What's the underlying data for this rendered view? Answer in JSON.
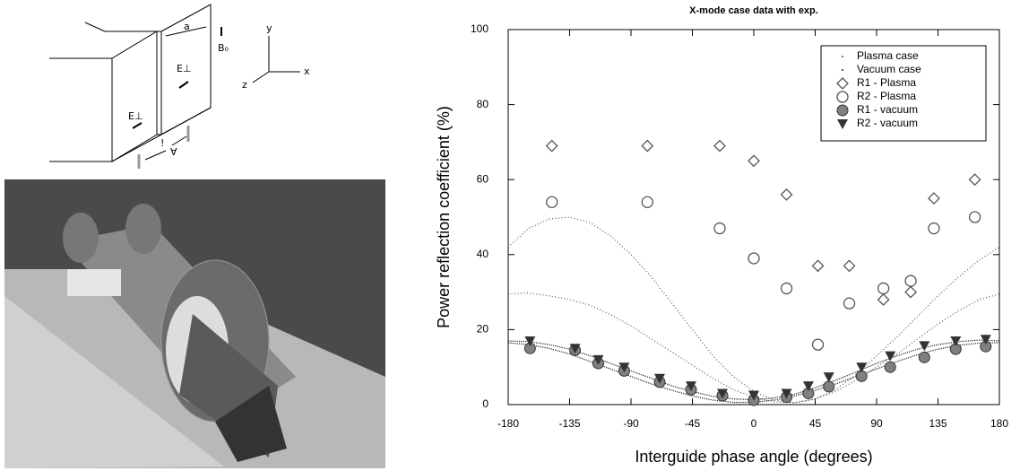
{
  "diagram": {
    "labels": [
      "a",
      "B₀",
      "y",
      "x",
      "z",
      "E⊥",
      "E⊥",
      "!",
      "∀"
    ]
  },
  "chart_data": {
    "type": "scatter",
    "title": "X-mode case data with exp.",
    "xlabel": "Interguide phase angle (degrees)",
    "ylabel": "Power reflection coefficient (%)",
    "xlim": [
      -180,
      180
    ],
    "xticks": [
      -180,
      -135,
      -90,
      -45,
      0,
      45,
      90,
      135,
      180
    ],
    "ylim": [
      0,
      100
    ],
    "yticks": [
      0,
      20,
      40,
      60,
      80,
      100
    ],
    "legend": "top-right",
    "series": [
      {
        "name": "Plasma case",
        "kind": "line",
        "style": "dotted",
        "color": "#555555",
        "x": [
          -180,
          -165,
          -150,
          -135,
          -120,
          -105,
          -90,
          -75,
          -60,
          -45,
          -30,
          -15,
          0,
          15,
          30,
          45,
          60,
          75,
          90,
          105,
          120,
          135,
          150,
          165,
          180
        ],
        "values": [
          42,
          47,
          49.5,
          50,
          48.5,
          45,
          40,
          34,
          27,
          20,
          13,
          7.5,
          3.5,
          1.2,
          0.5,
          1.5,
          4,
          8,
          13,
          18,
          23.5,
          29,
          34,
          38.5,
          42
        ]
      },
      {
        "kind": "line",
        "style": "dotted",
        "color": "#555555",
        "x": [
          -180,
          -165,
          -150,
          -135,
          -120,
          -105,
          -90,
          -75,
          -60,
          -45,
          -30,
          -15,
          0,
          15,
          30,
          45,
          60,
          75,
          90,
          105,
          120,
          135,
          150,
          165,
          180
        ],
        "values": [
          29.5,
          29.8,
          29,
          28,
          26.5,
          24,
          21,
          17.5,
          14,
          10.5,
          7,
          4,
          2,
          0.7,
          0.5,
          1.5,
          3.5,
          6.5,
          10,
          13.5,
          17.5,
          21.5,
          25,
          28,
          29.5
        ]
      },
      {
        "name": "Vacuum case",
        "kind": "line",
        "style": "dense",
        "color": "#222222",
        "x": [
          -180,
          -165,
          -150,
          -135,
          -120,
          -105,
          -90,
          -75,
          -60,
          -45,
          -30,
          -15,
          0,
          15,
          30,
          45,
          60,
          75,
          90,
          105,
          120,
          135,
          150,
          165,
          180
        ],
        "values": [
          16.5,
          16,
          15,
          13.5,
          11.5,
          9.5,
          7.5,
          5.5,
          3.8,
          2.3,
          1.2,
          0.6,
          0.6,
          1.2,
          2.3,
          3.8,
          5.5,
          7.5,
          9.5,
          11.5,
          13.3,
          14.8,
          15.8,
          16.4,
          16.5
        ]
      },
      {
        "kind": "line",
        "style": "dense",
        "color": "#222222",
        "x": [
          -180,
          -165,
          -150,
          -135,
          -120,
          -105,
          -90,
          -75,
          -60,
          -45,
          -30,
          -15,
          0,
          15,
          30,
          45,
          60,
          75,
          90,
          105,
          120,
          135,
          150,
          165,
          180
        ],
        "values": [
          17,
          16.8,
          16,
          14.8,
          13,
          11,
          9,
          7,
          5,
          3.5,
          2.2,
          1.5,
          1.3,
          1.8,
          2.8,
          4.5,
          6.5,
          8.7,
          11,
          13,
          14.8,
          16,
          16.8,
          17.2,
          17
        ]
      },
      {
        "name": "R1 - Plasma",
        "kind": "points",
        "marker": "diamond",
        "color": "#555555",
        "x": [
          -148,
          -78,
          -25,
          0,
          24,
          47,
          70,
          95,
          115,
          132,
          162
        ],
        "values": [
          69,
          69,
          69,
          65,
          56,
          37,
          37,
          28,
          30,
          55,
          60
        ]
      },
      {
        "name": "R2 - Plasma",
        "kind": "points",
        "marker": "circle",
        "color": "#555555",
        "x": [
          -148,
          -78,
          -25,
          0,
          24,
          47,
          70,
          95,
          115,
          132,
          162
        ],
        "values": [
          54,
          54,
          47,
          39,
          31,
          16,
          27,
          31,
          33,
          47,
          50
        ]
      },
      {
        "name": "R1 - vacuum",
        "kind": "points",
        "marker": "disc",
        "color": "#808080",
        "x": [
          -164,
          -131,
          -114,
          -95,
          -69,
          -46,
          -23,
          0,
          24,
          40,
          55,
          79,
          100,
          125,
          148,
          170
        ],
        "values": [
          15,
          14.5,
          11,
          9,
          6,
          4,
          2.4,
          1.2,
          2,
          3,
          4.8,
          7.6,
          10,
          12.6,
          14.8,
          15.5
        ]
      },
      {
        "name": "R2 - vacuum",
        "kind": "points",
        "marker": "triangle",
        "color": "#333333",
        "x": [
          -164,
          -131,
          -114,
          -95,
          -69,
          -46,
          -23,
          0,
          24,
          40,
          55,
          79,
          100,
          125,
          148,
          170
        ],
        "values": [
          17,
          15,
          12,
          10,
          7,
          5,
          3,
          2.5,
          3,
          5,
          7.4,
          10,
          13,
          15.7,
          17,
          17.4
        ]
      }
    ]
  }
}
